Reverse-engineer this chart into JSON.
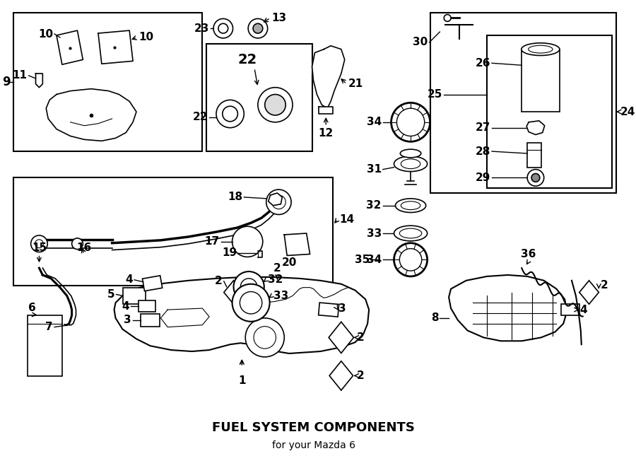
{
  "title": "FUEL SYSTEM COMPONENTS",
  "subtitle": "for your Mazda 6",
  "bg_color": "#ffffff",
  "line_color": "#000000",
  "fig_width": 9.0,
  "fig_height": 6.62,
  "dpi": 100
}
